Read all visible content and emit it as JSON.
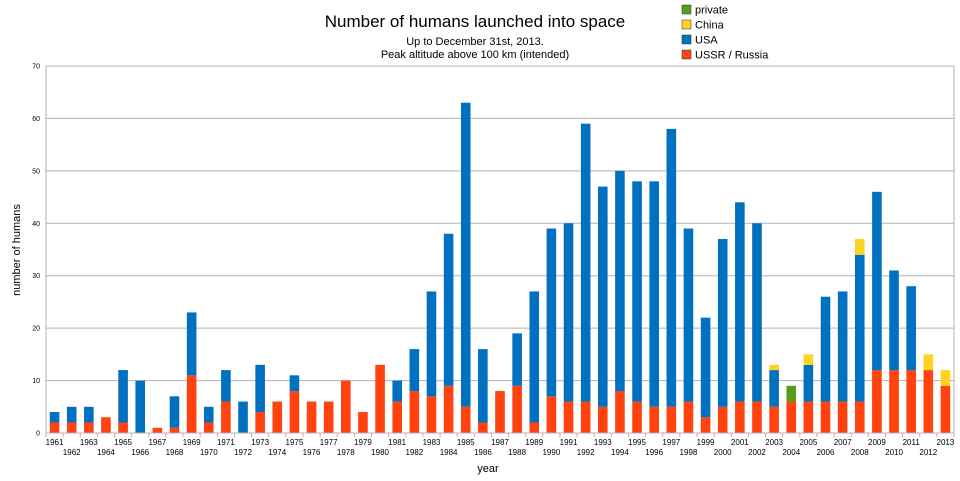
{
  "chart_data": {
    "type": "bar",
    "stacked": true,
    "title": "Number of humans launched into space",
    "subtitle_lines": [
      "Up to December 31st, 2013.",
      "Peak altitude above 100 km (intended)"
    ],
    "xlabel": "year",
    "ylabel": "number of humans",
    "ylim": [
      0,
      70
    ],
    "yticks": [
      0,
      10,
      20,
      30,
      40,
      50,
      60,
      70
    ],
    "grid": true,
    "legend_position": "top-right",
    "categories": [
      "1961",
      "1962",
      "1963",
      "1964",
      "1965",
      "1966",
      "1967",
      "1968",
      "1969",
      "1970",
      "1971",
      "1972",
      "1973",
      "1974",
      "1975",
      "1976",
      "1977",
      "1978",
      "1979",
      "1980",
      "1981",
      "1982",
      "1983",
      "1984",
      "1985",
      "1986",
      "1987",
      "1988",
      "1989",
      "1990",
      "1991",
      "1992",
      "1993",
      "1994",
      "1995",
      "1996",
      "1997",
      "1998",
      "1999",
      "2000",
      "2001",
      "2002",
      "2003",
      "2004",
      "2005",
      "2006",
      "2007",
      "2008",
      "2009",
      "2010",
      "2011",
      "2012",
      "2013"
    ],
    "series": [
      {
        "name": "USSR / Russia",
        "color": "#ff420e",
        "values": [
          2,
          2,
          2,
          3,
          2,
          0,
          1,
          1,
          11,
          2,
          6,
          0,
          4,
          6,
          8,
          6,
          6,
          10,
          4,
          13,
          6,
          8,
          7,
          9,
          5,
          2,
          8,
          9,
          2,
          7,
          6,
          6,
          5,
          8,
          6,
          5,
          5,
          6,
          3,
          5,
          6,
          6,
          5,
          6,
          6,
          6,
          6,
          6,
          12,
          12,
          12,
          12,
          9
        ]
      },
      {
        "name": "USA",
        "color": "#0070c0",
        "values": [
          2,
          3,
          3,
          0,
          10,
          10,
          0,
          6,
          12,
          3,
          6,
          6,
          9,
          0,
          3,
          0,
          0,
          0,
          0,
          0,
          4,
          8,
          20,
          29,
          58,
          14,
          0,
          10,
          25,
          32,
          34,
          53,
          42,
          42,
          42,
          43,
          53,
          33,
          19,
          32,
          38,
          34,
          7,
          0,
          7,
          20,
          21,
          28,
          34,
          19,
          16,
          0,
          0
        ]
      },
      {
        "name": "China",
        "color": "#ffd320",
        "values": [
          0,
          0,
          0,
          0,
          0,
          0,
          0,
          0,
          0,
          0,
          0,
          0,
          0,
          0,
          0,
          0,
          0,
          0,
          0,
          0,
          0,
          0,
          0,
          0,
          0,
          0,
          0,
          0,
          0,
          0,
          0,
          0,
          0,
          0,
          0,
          0,
          0,
          0,
          0,
          0,
          0,
          0,
          1,
          0,
          2,
          0,
          0,
          3,
          0,
          0,
          0,
          3,
          3
        ]
      },
      {
        "name": "private",
        "color": "#579d1c",
        "values": [
          0,
          0,
          0,
          0,
          0,
          0,
          0,
          0,
          0,
          0,
          0,
          0,
          0,
          0,
          0,
          0,
          0,
          0,
          0,
          0,
          0,
          0,
          0,
          0,
          0,
          0,
          0,
          0,
          0,
          0,
          0,
          0,
          0,
          0,
          0,
          0,
          0,
          0,
          0,
          0,
          0,
          0,
          0,
          3,
          0,
          0,
          0,
          0,
          0,
          0,
          0,
          0,
          0
        ]
      }
    ],
    "legend_order": [
      "private",
      "China",
      "USA",
      "USSR / Russia"
    ]
  }
}
